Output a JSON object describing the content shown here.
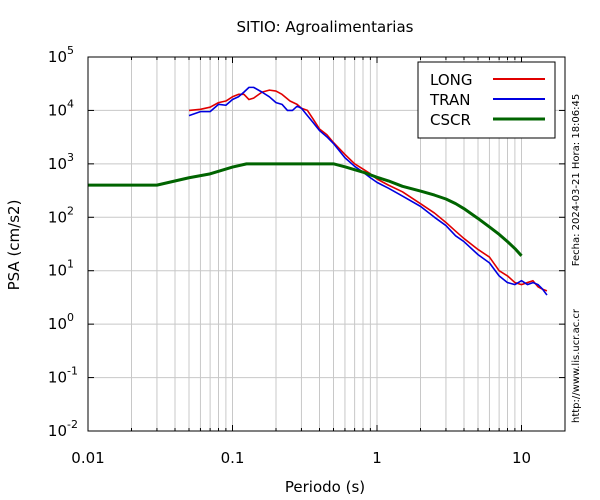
{
  "chart_data": {
    "type": "line",
    "title": "SITIO: Agroalimentarias",
    "xlabel": "Periodo (s)",
    "ylabel": "PSA (cm/s2)",
    "x_scale": "log",
    "y_scale": "log",
    "xlim": [
      0.01,
      20
    ],
    "ylim": [
      0.01,
      100000
    ],
    "grid": true,
    "legend_position": "top-right",
    "x_ticks": [
      {
        "value": 0.01,
        "label": "0.01"
      },
      {
        "value": 0.1,
        "label": "0.1"
      },
      {
        "value": 1,
        "label": "1"
      },
      {
        "value": 10,
        "label": "10"
      }
    ],
    "y_ticks": [
      {
        "value": 0.01,
        "base": "10",
        "exp": "-2"
      },
      {
        "value": 0.1,
        "base": "10",
        "exp": "-1"
      },
      {
        "value": 1,
        "base": "10",
        "exp": "0"
      },
      {
        "value": 10,
        "base": "10",
        "exp": "1"
      },
      {
        "value": 100,
        "base": "10",
        "exp": "2"
      },
      {
        "value": 1000,
        "base": "10",
        "exp": "3"
      },
      {
        "value": 10000,
        "base": "10",
        "exp": "4"
      },
      {
        "value": 100000,
        "base": "10",
        "exp": "5"
      }
    ],
    "series": [
      {
        "name": "LONG",
        "color": "#e00000",
        "points": [
          [
            0.05,
            10000
          ],
          [
            0.06,
            10500
          ],
          [
            0.07,
            11500
          ],
          [
            0.08,
            14000
          ],
          [
            0.09,
            15000
          ],
          [
            0.1,
            18000
          ],
          [
            0.11,
            20000
          ],
          [
            0.12,
            20000
          ],
          [
            0.13,
            16000
          ],
          [
            0.14,
            17000
          ],
          [
            0.16,
            22000
          ],
          [
            0.18,
            24000
          ],
          [
            0.2,
            23000
          ],
          [
            0.22,
            20000
          ],
          [
            0.25,
            15000
          ],
          [
            0.28,
            13000
          ],
          [
            0.3,
            11000
          ],
          [
            0.33,
            10000
          ],
          [
            0.36,
            7000
          ],
          [
            0.4,
            4500
          ],
          [
            0.45,
            3500
          ],
          [
            0.5,
            2500
          ],
          [
            0.6,
            1500
          ],
          [
            0.7,
            1000
          ],
          [
            0.8,
            800
          ],
          [
            0.9,
            650
          ],
          [
            1.0,
            520
          ],
          [
            1.2,
            400
          ],
          [
            1.5,
            300
          ],
          [
            2.0,
            180
          ],
          [
            2.5,
            120
          ],
          [
            3.0,
            80
          ],
          [
            3.5,
            55
          ],
          [
            4.0,
            40
          ],
          [
            5.0,
            25
          ],
          [
            6.0,
            18
          ],
          [
            7.0,
            10
          ],
          [
            8.0,
            8
          ],
          [
            9.0,
            6
          ],
          [
            10.0,
            5.5
          ],
          [
            11.0,
            6
          ],
          [
            12.0,
            6.5
          ],
          [
            13.0,
            5
          ],
          [
            14.0,
            4.5
          ],
          [
            15.0,
            4.2
          ]
        ]
      },
      {
        "name": "TRAN",
        "color": "#0000e0",
        "points": [
          [
            0.05,
            8000
          ],
          [
            0.06,
            9500
          ],
          [
            0.07,
            9500
          ],
          [
            0.08,
            13000
          ],
          [
            0.09,
            12500
          ],
          [
            0.1,
            16000
          ],
          [
            0.11,
            18000
          ],
          [
            0.12,
            22000
          ],
          [
            0.13,
            27000
          ],
          [
            0.14,
            27000
          ],
          [
            0.16,
            22000
          ],
          [
            0.18,
            18000
          ],
          [
            0.2,
            14000
          ],
          [
            0.22,
            13000
          ],
          [
            0.24,
            10000
          ],
          [
            0.26,
            10000
          ],
          [
            0.28,
            12000
          ],
          [
            0.3,
            11000
          ],
          [
            0.33,
            8000
          ],
          [
            0.36,
            6000
          ],
          [
            0.4,
            4200
          ],
          [
            0.45,
            3200
          ],
          [
            0.5,
            2400
          ],
          [
            0.6,
            1300
          ],
          [
            0.7,
            900
          ],
          [
            0.8,
            700
          ],
          [
            0.9,
            550
          ],
          [
            1.0,
            450
          ],
          [
            1.2,
            350
          ],
          [
            1.5,
            250
          ],
          [
            2.0,
            160
          ],
          [
            2.5,
            100
          ],
          [
            3.0,
            70
          ],
          [
            3.5,
            45
          ],
          [
            4.0,
            35
          ],
          [
            5.0,
            20
          ],
          [
            6.0,
            14
          ],
          [
            7.0,
            8
          ],
          [
            8.0,
            6
          ],
          [
            9.0,
            5.5
          ],
          [
            10.0,
            6.5
          ],
          [
            11.0,
            5.5
          ],
          [
            12.0,
            6
          ],
          [
            13.0,
            5.5
          ],
          [
            14.0,
            4.5
          ],
          [
            15.0,
            3.5
          ]
        ]
      },
      {
        "name": "CSCR",
        "color": "#006400",
        "points": [
          [
            0.01,
            400
          ],
          [
            0.03,
            400
          ],
          [
            0.05,
            550
          ],
          [
            0.07,
            650
          ],
          [
            0.09,
            800
          ],
          [
            0.1,
            870
          ],
          [
            0.125,
            1000
          ],
          [
            0.2,
            1000
          ],
          [
            0.3,
            1000
          ],
          [
            0.5,
            1000
          ],
          [
            0.6,
            880
          ],
          [
            0.8,
            700
          ],
          [
            1.0,
            560
          ],
          [
            1.2,
            480
          ],
          [
            1.5,
            380
          ],
          [
            2.0,
            310
          ],
          [
            2.5,
            260
          ],
          [
            3.0,
            220
          ],
          [
            3.5,
            180
          ],
          [
            4.0,
            145
          ],
          [
            5.0,
            95
          ],
          [
            6.0,
            66
          ],
          [
            7.0,
            48
          ],
          [
            8.0,
            35
          ],
          [
            9.0,
            26
          ],
          [
            10.0,
            19
          ]
        ]
      }
    ]
  },
  "side_labels": {
    "date": "Fecha: 2024-03-21 Hora: 18:06:45",
    "url": "http://www.lis.ucr.ac.cr"
  }
}
